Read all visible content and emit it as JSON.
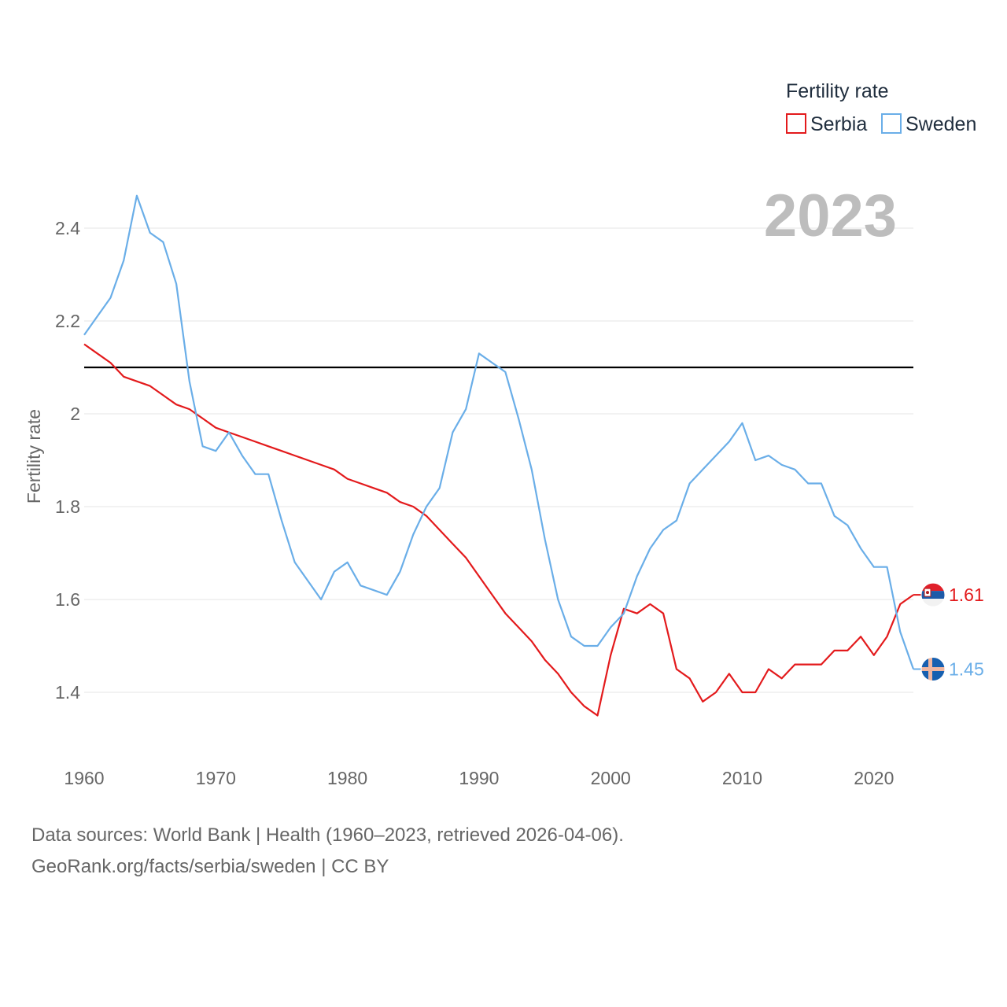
{
  "chart_data": {
    "type": "line",
    "title": "2023",
    "xlabel": "",
    "ylabel": "Fertility rate",
    "xlim": [
      1960,
      2023
    ],
    "ylim": [
      1.25,
      2.55
    ],
    "x_ticks": [
      1960,
      1970,
      1980,
      1990,
      2000,
      2010,
      2020
    ],
    "y_ticks": [
      1.4,
      1.6,
      1.8,
      2.0,
      2.2,
      2.4
    ],
    "y_tick_labels": [
      "1.4",
      "1.6",
      "1.8",
      "2",
      "2.2",
      "2.4"
    ],
    "reference_line": 2.1,
    "legend": {
      "title": "Fertility rate",
      "position": "top-right"
    },
    "x": [
      1960,
      1961,
      1962,
      1963,
      1964,
      1965,
      1966,
      1967,
      1968,
      1969,
      1970,
      1971,
      1972,
      1973,
      1974,
      1975,
      1976,
      1977,
      1978,
      1979,
      1980,
      1981,
      1982,
      1983,
      1984,
      1985,
      1986,
      1987,
      1988,
      1989,
      1990,
      1991,
      1992,
      1993,
      1994,
      1995,
      1996,
      1997,
      1998,
      1999,
      2000,
      2001,
      2002,
      2003,
      2004,
      2005,
      2006,
      2007,
      2008,
      2009,
      2010,
      2011,
      2012,
      2013,
      2014,
      2015,
      2016,
      2017,
      2018,
      2019,
      2020,
      2021,
      2022,
      2023
    ],
    "series": [
      {
        "name": "Serbia",
        "color": "#e31a1c",
        "end_label": "1.61",
        "flag": "serbia-flag",
        "values": [
          2.15,
          2.13,
          2.11,
          2.08,
          2.07,
          2.06,
          2.04,
          2.02,
          2.01,
          1.99,
          1.97,
          1.96,
          1.95,
          1.94,
          1.93,
          1.92,
          1.91,
          1.9,
          1.89,
          1.88,
          1.86,
          1.85,
          1.84,
          1.83,
          1.81,
          1.8,
          1.78,
          1.75,
          1.72,
          1.69,
          1.65,
          1.61,
          1.57,
          1.54,
          1.51,
          1.47,
          1.44,
          1.4,
          1.37,
          1.35,
          1.48,
          1.58,
          1.57,
          1.59,
          1.57,
          1.45,
          1.43,
          1.38,
          1.4,
          1.44,
          1.4,
          1.4,
          1.45,
          1.43,
          1.46,
          1.46,
          1.46,
          1.49,
          1.49,
          1.52,
          1.48,
          1.52,
          1.59,
          1.61
        ]
      },
      {
        "name": "Sweden",
        "color": "#6aaee8",
        "end_label": "1.45",
        "flag": "sweden-flag",
        "values": [
          2.17,
          2.21,
          2.25,
          2.33,
          2.47,
          2.39,
          2.37,
          2.28,
          2.07,
          1.93,
          1.92,
          1.96,
          1.91,
          1.87,
          1.87,
          1.77,
          1.68,
          1.64,
          1.6,
          1.66,
          1.68,
          1.63,
          1.62,
          1.61,
          1.66,
          1.74,
          1.8,
          1.84,
          1.96,
          2.01,
          2.13,
          2.11,
          2.09,
          1.99,
          1.88,
          1.73,
          1.6,
          1.52,
          1.5,
          1.5,
          1.54,
          1.57,
          1.65,
          1.71,
          1.75,
          1.77,
          1.85,
          1.88,
          1.91,
          1.94,
          1.98,
          1.9,
          1.91,
          1.89,
          1.88,
          1.85,
          1.85,
          1.78,
          1.76,
          1.71,
          1.67,
          1.67,
          1.53,
          1.45
        ]
      }
    ]
  },
  "footer": {
    "line1": "Data sources: World Bank | Health (1960–2023, retrieved 2026-04-06).",
    "line2": "GeoRank.org/facts/serbia/sweden | CC BY"
  }
}
